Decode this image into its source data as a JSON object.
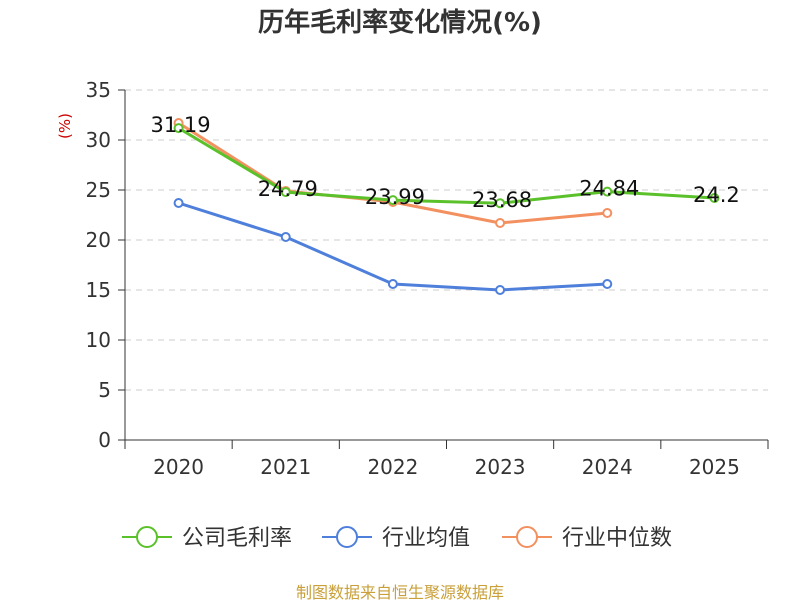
{
  "title": "历年毛利率变化情况(%)",
  "source": "制图数据来自恒生聚源数据库",
  "colors": {
    "company": "#5BC12B",
    "industry_avg": "#4E7FDA",
    "industry_median": "#F39060",
    "source": "#C9A03A",
    "ylabel": "#CC0000"
  },
  "chart_data": {
    "type": "line",
    "title": "历年毛利率变化情况(%)",
    "xlabel": "",
    "ylabel": "(%)",
    "categories": [
      "2020",
      "2021",
      "2022",
      "2023",
      "2024",
      "2025"
    ],
    "ylim": [
      0,
      35
    ],
    "yticks": [
      0,
      5,
      10,
      15,
      20,
      25,
      30,
      35
    ],
    "grid": true,
    "legend": "bottom",
    "series": [
      {
        "name": "公司毛利率",
        "key": "company",
        "values": [
          31.19,
          24.79,
          23.99,
          23.68,
          24.84,
          24.2
        ],
        "labels": [
          "31.19",
          "24.79",
          "23.99",
          "23.68",
          "24.84",
          "24.2"
        ]
      },
      {
        "name": "行业均值",
        "key": "industry_avg",
        "values": [
          23.7,
          20.3,
          15.6,
          15.0,
          15.6,
          null
        ]
      },
      {
        "name": "行业中位数",
        "key": "industry_median",
        "values": [
          31.7,
          24.9,
          23.8,
          21.7,
          22.7,
          null
        ]
      }
    ]
  }
}
